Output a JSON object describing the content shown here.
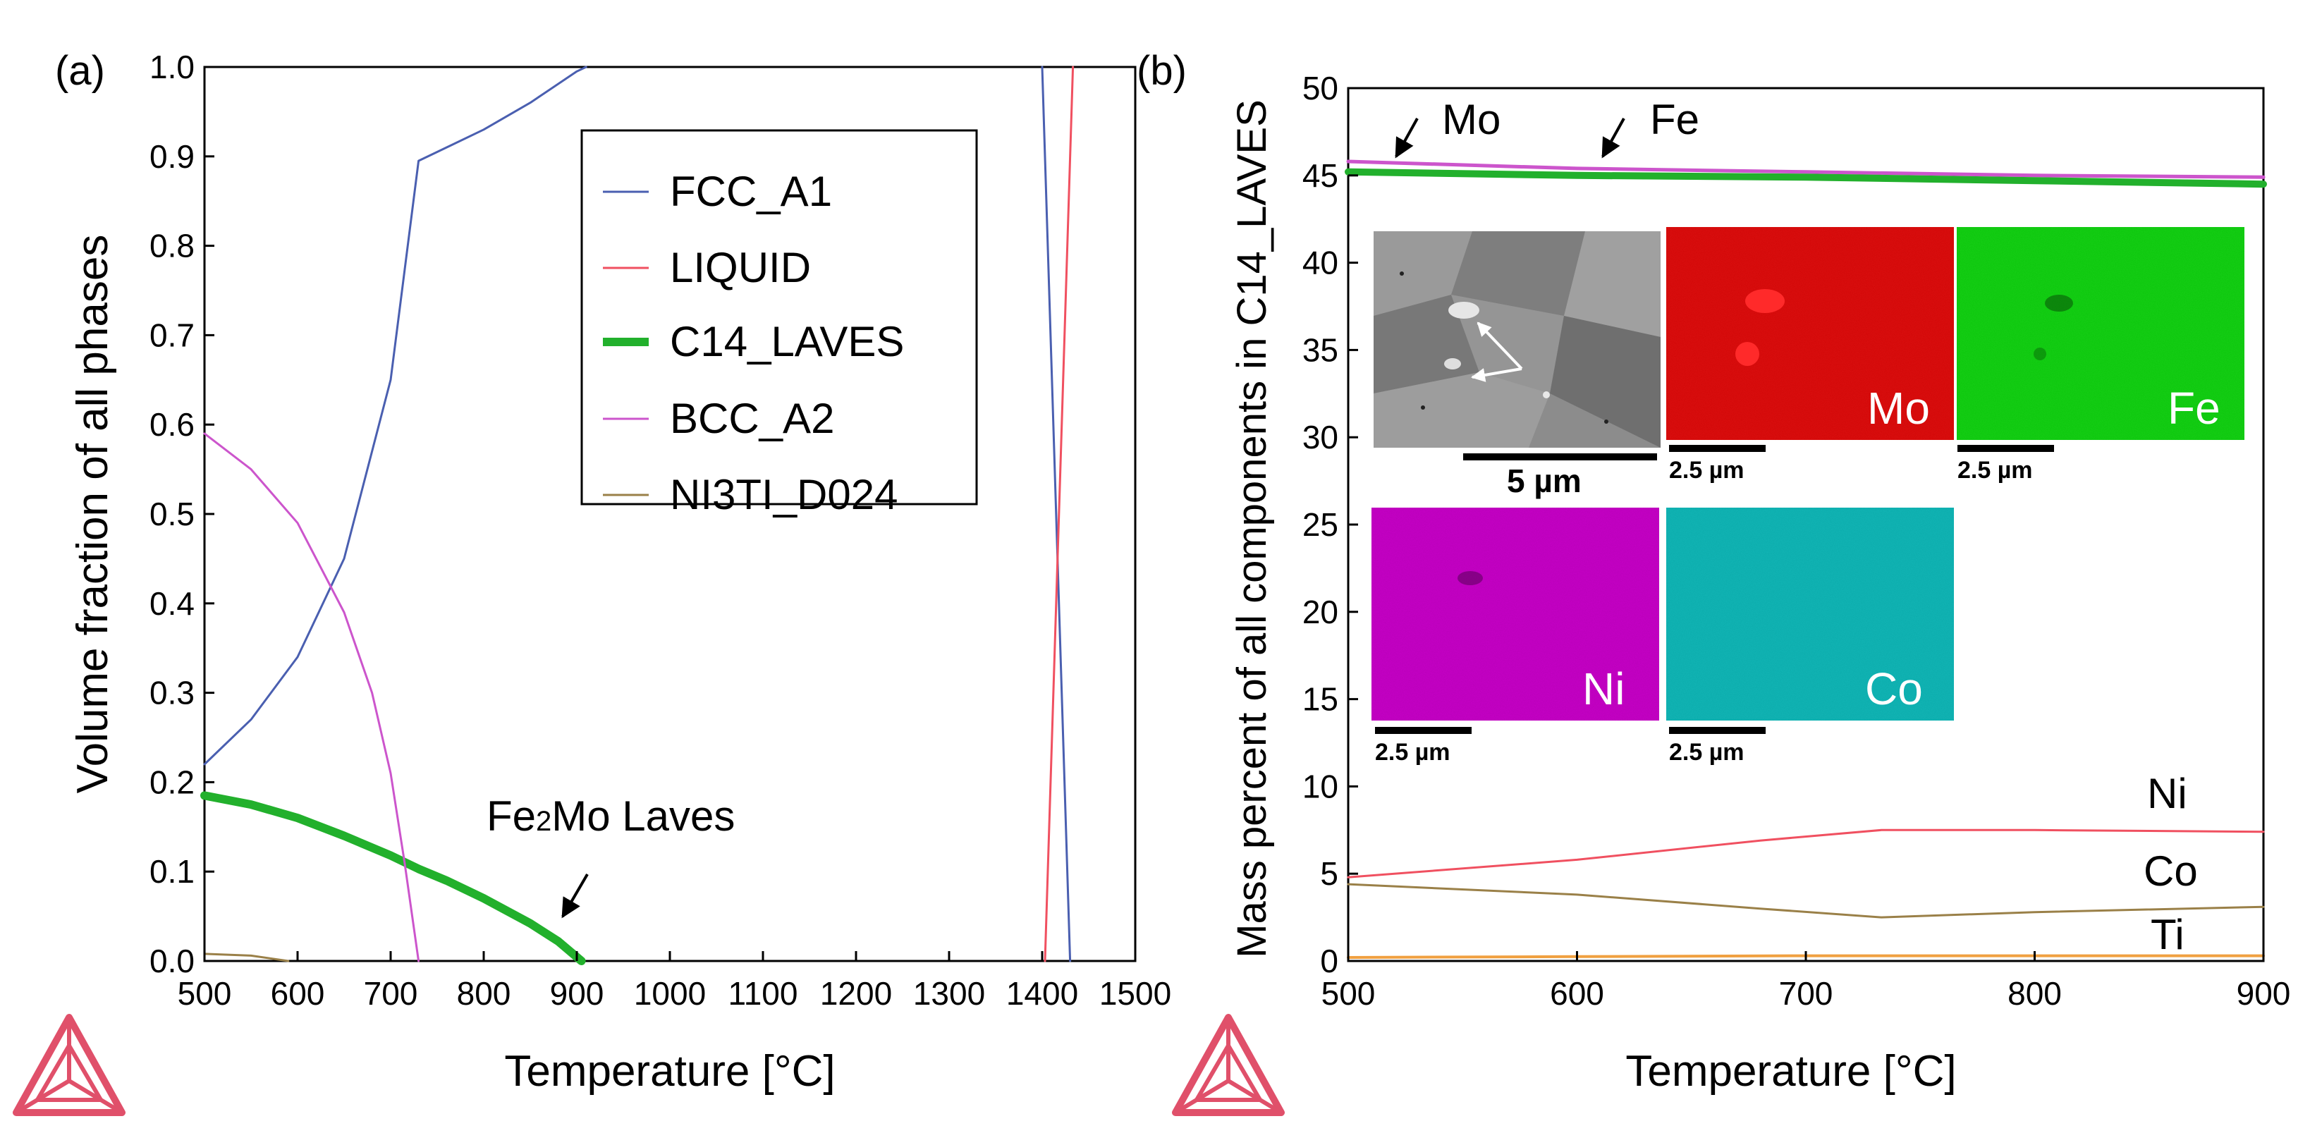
{
  "colors": {
    "fcc": "#4a5fb0",
    "liquid": "#f05060",
    "laves": "#22b02c",
    "bcc": "#cc55cc",
    "ni3ti": "#9a8048",
    "ti": "#f0a040",
    "mo_map": "#e11010",
    "fe_map": "#10d010",
    "ni_map": "#cc00cc",
    "co_map": "#11b8b8",
    "logo": "#e0506a"
  },
  "panel_a": {
    "label": "(a)",
    "annotation": "Fe2Mo Laves",
    "annotation_parts": {
      "pre": "Fe",
      "sub": "2",
      "post": "Mo Laves"
    }
  },
  "panel_b": {
    "label": "(b)",
    "arrow_labels": {
      "mo": "Mo",
      "fe": "Fe"
    },
    "line_labels": {
      "ni": "Ni",
      "co": "Co",
      "ti": "Ti"
    }
  },
  "insets": {
    "scale_main": "5 µm",
    "scale_small": "2.5 µm",
    "maps": [
      {
        "key": "mo",
        "label": "Mo"
      },
      {
        "key": "fe",
        "label": "Fe"
      },
      {
        "key": "ni",
        "label": "Ni"
      },
      {
        "key": "co",
        "label": "Co"
      }
    ]
  },
  "chart_data": [
    {
      "type": "line",
      "title": "",
      "xlabel": "Temperature [°C]",
      "ylabel": "Volume fraction of all phases",
      "xlim": [
        500,
        1500
      ],
      "ylim": [
        0,
        1.0
      ],
      "xticks": [
        500,
        600,
        700,
        800,
        900,
        1000,
        1100,
        1200,
        1300,
        1400,
        1500
      ],
      "yticks": [
        0.0,
        0.1,
        0.2,
        0.3,
        0.4,
        0.5,
        0.6,
        0.7,
        0.8,
        0.9,
        1.0
      ],
      "legend": [
        "FCC_A1",
        "LIQUID",
        "C14_LAVES",
        "BCC_A2",
        "NI3TI_D024"
      ],
      "legend_position": "top-right",
      "series": [
        {
          "name": "FCC_A1",
          "color_key": "fcc",
          "width": 3,
          "x": [
            500,
            550,
            600,
            650,
            700,
            730,
            750,
            800,
            850,
            900,
            910
          ],
          "y": [
            0.22,
            0.27,
            0.34,
            0.45,
            0.65,
            0.895,
            0.905,
            0.93,
            0.96,
            0.995,
            1.0
          ]
        },
        {
          "name": "FCC_A1",
          "color_key": "fcc",
          "width": 3,
          "x": [
            1400,
            1430
          ],
          "y": [
            1.0,
            0.0
          ]
        },
        {
          "name": "LIQUID",
          "color_key": "liquid",
          "width": 3,
          "x": [
            1403,
            1433
          ],
          "y": [
            0.0,
            1.0
          ]
        },
        {
          "name": "C14_LAVES",
          "color_key": "laves",
          "width": 12,
          "x": [
            500,
            550,
            600,
            650,
            700,
            730,
            760,
            800,
            850,
            880,
            905
          ],
          "y": [
            0.185,
            0.175,
            0.16,
            0.14,
            0.118,
            0.103,
            0.09,
            0.07,
            0.042,
            0.022,
            0.0
          ]
        },
        {
          "name": "BCC_A2",
          "color_key": "bcc",
          "width": 3,
          "x": [
            500,
            550,
            600,
            650,
            680,
            700,
            715,
            730
          ],
          "y": [
            0.59,
            0.55,
            0.49,
            0.39,
            0.3,
            0.21,
            0.11,
            0.0
          ]
        },
        {
          "name": "NI3TI_D024",
          "color_key": "ni3ti",
          "width": 3,
          "x": [
            500,
            550,
            590
          ],
          "y": [
            0.008,
            0.006,
            0.0
          ]
        }
      ]
    },
    {
      "type": "line",
      "title": "",
      "xlabel": "Temperature [°C]",
      "ylabel": "Mass percent of all components in C14_LAVES",
      "xlim": [
        500,
        900
      ],
      "ylim": [
        0,
        50
      ],
      "xticks": [
        500,
        600,
        700,
        800,
        900
      ],
      "yticks": [
        0,
        5,
        10,
        15,
        20,
        25,
        30,
        35,
        40,
        45,
        50
      ],
      "series": [
        {
          "name": "Mo",
          "color_key": "bcc",
          "width": 5,
          "x": [
            500,
            600,
            700,
            800,
            900
          ],
          "y": [
            45.8,
            45.4,
            45.2,
            45.0,
            44.9
          ]
        },
        {
          "name": "Fe",
          "color_key": "laves",
          "width": 10,
          "x": [
            500,
            600,
            700,
            800,
            900
          ],
          "y": [
            45.2,
            45.0,
            44.9,
            44.7,
            44.5
          ]
        },
        {
          "name": "Ni",
          "color_key": "liquid",
          "width": 3,
          "x": [
            500,
            600,
            680,
            733,
            800,
            900
          ],
          "y": [
            4.8,
            5.8,
            6.9,
            7.5,
            7.5,
            7.4
          ]
        },
        {
          "name": "Co",
          "color_key": "ni3ti",
          "width": 3,
          "x": [
            500,
            600,
            680,
            733,
            800,
            900
          ],
          "y": [
            4.4,
            3.8,
            3.0,
            2.5,
            2.8,
            3.1
          ]
        },
        {
          "name": "Ti",
          "color_key": "ti",
          "width": 4,
          "x": [
            500,
            600,
            700,
            800,
            900
          ],
          "y": [
            0.2,
            0.25,
            0.3,
            0.3,
            0.3
          ]
        }
      ]
    }
  ]
}
